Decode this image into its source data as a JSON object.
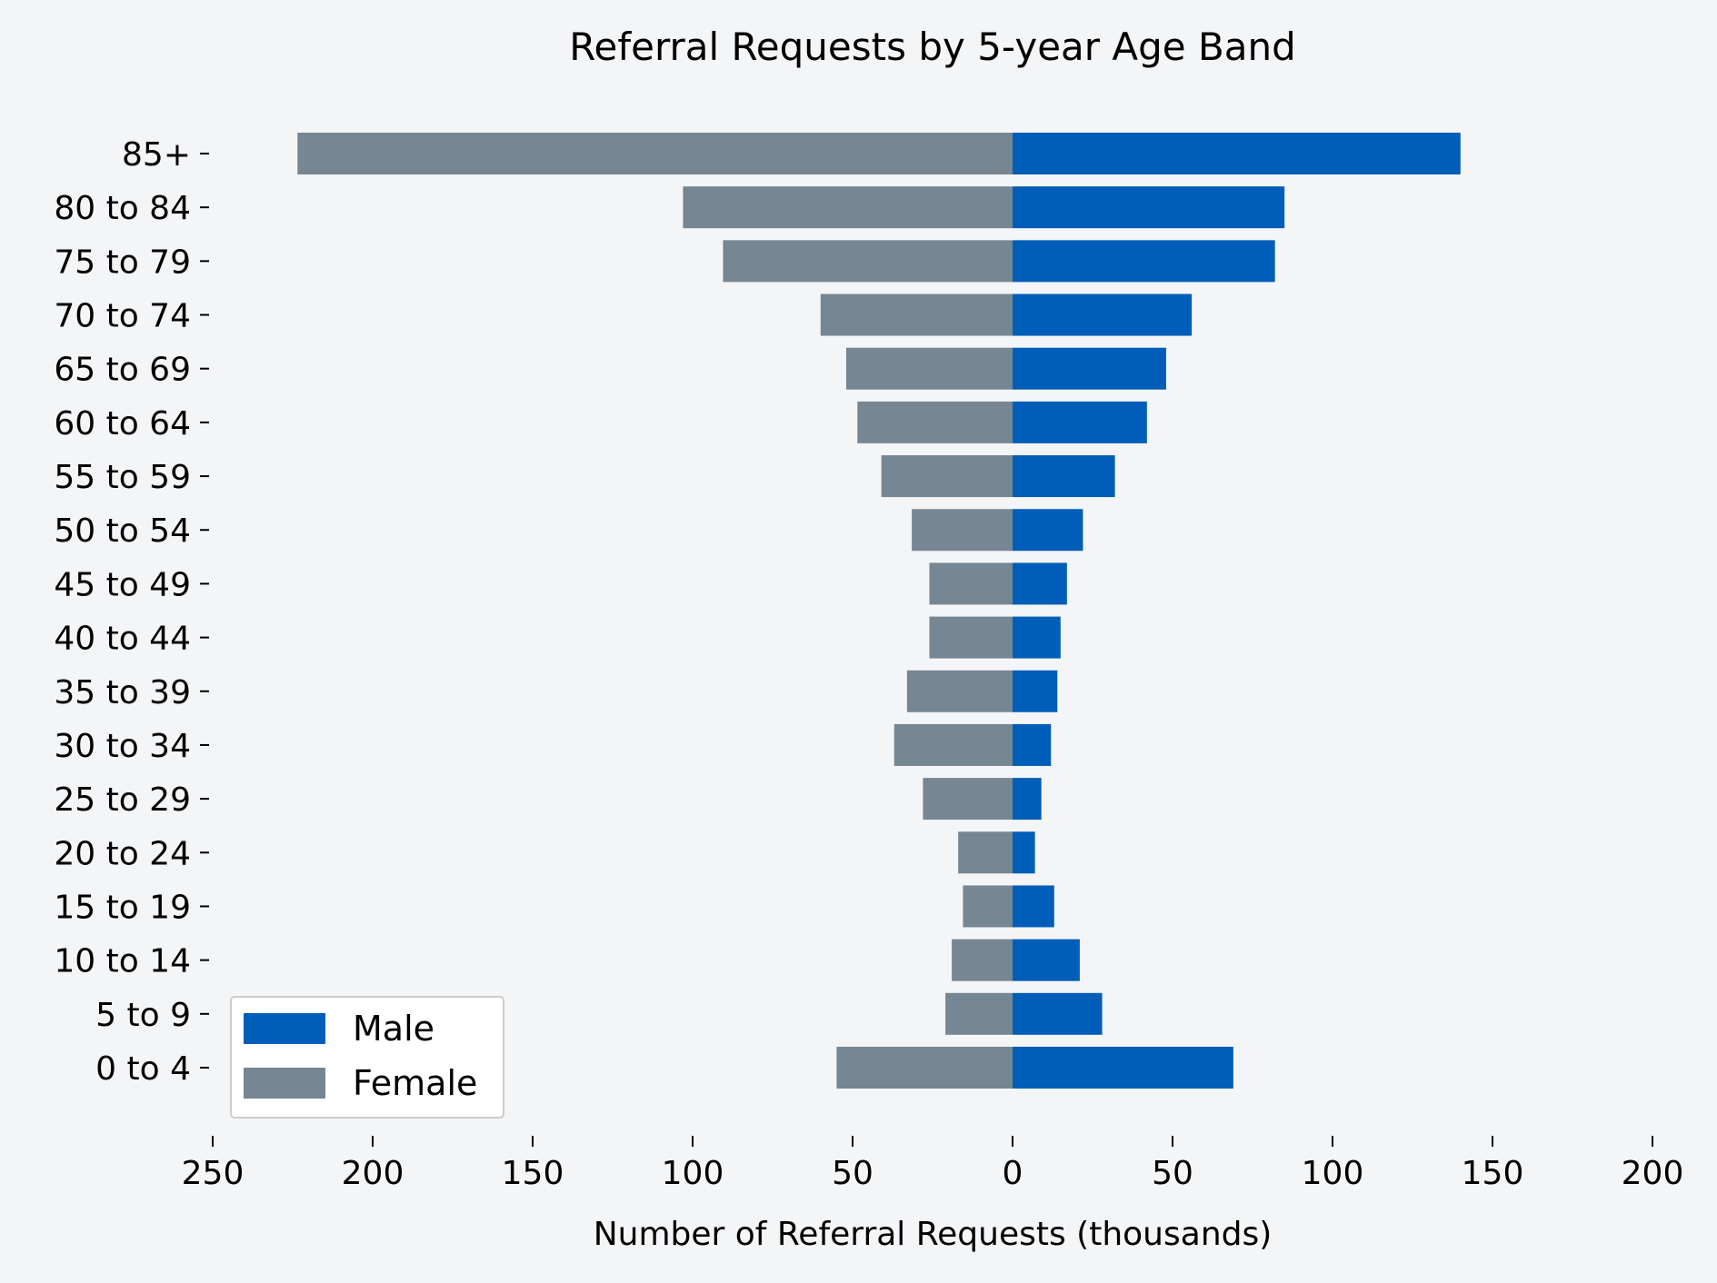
{
  "chart_data": {
    "type": "bar",
    "orientation": "horizontal",
    "layout": "population-pyramid",
    "title": "Referral Requests by 5-year Age Band",
    "xlabel": "Number of Referral Requests (thousands)",
    "ylabel": "",
    "xlim": [
      -250,
      200
    ],
    "xticks": [
      -250,
      -200,
      -150,
      -100,
      -50,
      0,
      50,
      100,
      150,
      200
    ],
    "xtick_labels": [
      "250",
      "200",
      "150",
      "100",
      "50",
      "0",
      "50",
      "100",
      "150",
      "200"
    ],
    "categories": [
      "0 to 4",
      "5 to 9",
      "10 to 14",
      "15 to 19",
      "20 to 24",
      "25 to 29",
      "30 to 34",
      "35 to 39",
      "40 to 44",
      "45 to 49",
      "50 to 54",
      "55 to 59",
      "60 to 64",
      "65 to 69",
      "70 to 74",
      "75 to 79",
      "80 to 84",
      "85+"
    ],
    "series": [
      {
        "name": "Male",
        "color": "#005eb8",
        "values": [
          69,
          28,
          21,
          13,
          7,
          9,
          12,
          14,
          15,
          17,
          22,
          32,
          42,
          48,
          56,
          82,
          85,
          140
        ]
      },
      {
        "name": "Female",
        "color": "#768692",
        "values": [
          55,
          21,
          19,
          15.5,
          17,
          28,
          37,
          33,
          26,
          26,
          31.5,
          41,
          48.5,
          52,
          60,
          90.5,
          103,
          223.5
        ]
      }
    ],
    "grid": false,
    "legend_position": "lower-left",
    "background": "#f4f5f7"
  }
}
